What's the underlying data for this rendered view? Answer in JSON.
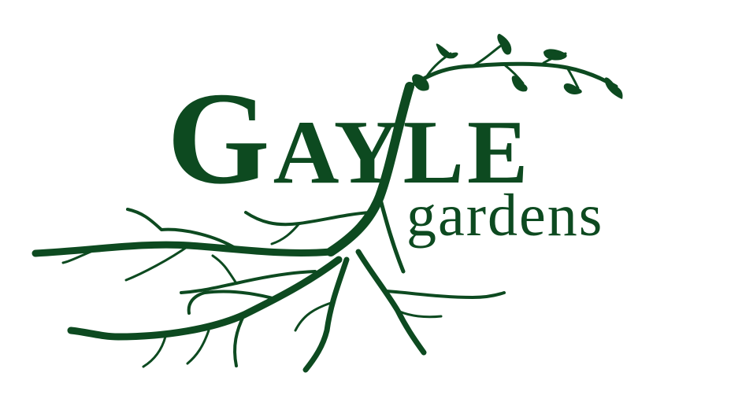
{
  "logo": {
    "name_initial": "G",
    "name_rest": "AYLE",
    "tagline": "gardens",
    "colors": {
      "brand_green": "#0d4a20",
      "background": "#ffffff"
    },
    "icon": "tree-roots-and-vine-icon"
  }
}
